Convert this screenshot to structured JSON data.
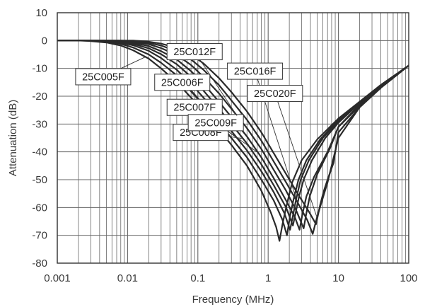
{
  "chart_data": {
    "type": "line",
    "title": "",
    "xlabel": "Frequency (MHz)",
    "ylabel": "Attenuation (dB)",
    "x_scale": "log",
    "xlim": [
      0.001,
      100
    ],
    "ylim": [
      -80,
      10
    ],
    "x_ticks": [
      "0.001",
      "0.01",
      "0.1",
      "1",
      "10",
      "100"
    ],
    "y_ticks": [
      "10",
      "0",
      "-10",
      "-20",
      "-30",
      "-40",
      "-50",
      "-60",
      "-70",
      "-80"
    ],
    "grid": true,
    "colors": {
      "series": "#2a2a2a",
      "grid": "#666666",
      "axis": "#333333"
    },
    "series": [
      {
        "name": "25C005F",
        "x": [
          0.001,
          0.002,
          0.003,
          0.005,
          0.008,
          0.012,
          0.02,
          0.03,
          0.05,
          0.08,
          0.12,
          0.2,
          0.3,
          0.5,
          0.8,
          1.1,
          1.3,
          1.45,
          1.6,
          1.8,
          2.2,
          3,
          5,
          10,
          20,
          40,
          100
        ],
        "y": [
          0,
          0,
          -0.2,
          -0.7,
          -1.8,
          -3.5,
          -6.5,
          -10,
          -15,
          -20.5,
          -25.5,
          -32,
          -37.5,
          -45,
          -54,
          -62,
          -67,
          -72,
          -66,
          -60,
          -51,
          -43,
          -35.5,
          -28,
          -22,
          -16.5,
          -9
        ]
      },
      {
        "name": "25C006F",
        "x": [
          0.001,
          0.002,
          0.003,
          0.005,
          0.008,
          0.012,
          0.02,
          0.03,
          0.05,
          0.08,
          0.12,
          0.2,
          0.3,
          0.5,
          0.8,
          1.2,
          1.6,
          1.85,
          2.05,
          2.3,
          2.7,
          3.5,
          5.5,
          10,
          20,
          40,
          100
        ],
        "y": [
          0,
          0,
          -0.1,
          -0.4,
          -1.2,
          -2.5,
          -5,
          -8,
          -12.5,
          -18,
          -23,
          -29.5,
          -35,
          -42,
          -50,
          -57.5,
          -64.5,
          -70,
          -63,
          -57,
          -50,
          -43,
          -35.5,
          -28.5,
          -22,
          -16,
          -9
        ]
      },
      {
        "name": "25C007F",
        "x": [
          0.001,
          0.002,
          0.003,
          0.005,
          0.008,
          0.012,
          0.02,
          0.03,
          0.05,
          0.08,
          0.12,
          0.2,
          0.3,
          0.5,
          0.8,
          1.2,
          1.7,
          2.05,
          2.25,
          2.5,
          2.9,
          3.8,
          6,
          10,
          20,
          40,
          100
        ],
        "y": [
          0,
          0,
          0,
          -0.2,
          -0.8,
          -1.7,
          -3.7,
          -6.3,
          -10.5,
          -15.5,
          -20.5,
          -27,
          -32.5,
          -39.5,
          -47,
          -54.5,
          -62,
          -68,
          -63,
          -57,
          -50,
          -43,
          -35,
          -29,
          -22,
          -16,
          -9
        ]
      },
      {
        "name": "25C008F",
        "x": [
          0.001,
          0.003,
          0.005,
          0.008,
          0.012,
          0.02,
          0.03,
          0.05,
          0.08,
          0.12,
          0.2,
          0.3,
          0.5,
          0.8,
          1.2,
          1.8,
          2.25,
          2.5,
          2.75,
          3.2,
          4.2,
          6.5,
          10,
          20,
          40,
          100
        ],
        "y": [
          0,
          0,
          -0.1,
          -0.5,
          -1.2,
          -2.8,
          -4.9,
          -8.5,
          -13,
          -18,
          -24.5,
          -30,
          -37,
          -44.5,
          -52,
          -60,
          -66.5,
          -61,
          -56,
          -50,
          -43,
          -35,
          -29.5,
          -22.5,
          -16,
          -9
        ]
      },
      {
        "name": "25C009F",
        "x": [
          0.001,
          0.005,
          0.008,
          0.012,
          0.02,
          0.03,
          0.05,
          0.08,
          0.12,
          0.2,
          0.3,
          0.5,
          0.8,
          1.2,
          1.8,
          2.4,
          2.8,
          3.1,
          3.5,
          4.5,
          7,
          10,
          20,
          40,
          100
        ],
        "y": [
          0,
          0,
          -0.3,
          -0.8,
          -2,
          -3.8,
          -6.8,
          -11,
          -15.5,
          -22,
          -27.5,
          -34.5,
          -42,
          -49.5,
          -57.5,
          -63.5,
          -68,
          -62,
          -56,
          -49,
          -40,
          -31,
          -23,
          -16.5,
          -9
        ]
      },
      {
        "name": "25C012F",
        "x": [
          0.001,
          0.005,
          0.008,
          0.012,
          0.02,
          0.03,
          0.05,
          0.08,
          0.12,
          0.2,
          0.3,
          0.5,
          0.8,
          1.2,
          1.8,
          2.5,
          3.2,
          3.5,
          3.9,
          5,
          7.5,
          10,
          20,
          40,
          100
        ],
        "y": [
          0,
          0,
          -0.1,
          -0.5,
          -1.3,
          -2.7,
          -5.2,
          -8.8,
          -13,
          -19,
          -24.5,
          -31.5,
          -39,
          -46.5,
          -54,
          -61,
          -67.5,
          -62,
          -56,
          -48,
          -39,
          -31,
          -23.5,
          -16.5,
          -9
        ]
      },
      {
        "name": "25C016F",
        "x": [
          0.001,
          0.008,
          0.012,
          0.02,
          0.03,
          0.05,
          0.08,
          0.12,
          0.2,
          0.3,
          0.5,
          0.8,
          1.2,
          1.8,
          2.6,
          3.6,
          4.3,
          4.9,
          5.6,
          7,
          10,
          20,
          40,
          100
        ],
        "y": [
          0,
          0,
          -0.2,
          -0.8,
          -1.8,
          -3.8,
          -6.8,
          -10.5,
          -16,
          -21.5,
          -28.5,
          -36,
          -43.5,
          -51,
          -58,
          -64.5,
          -69.5,
          -64,
          -59,
          -51,
          -35,
          -24,
          -17,
          -9
        ]
      },
      {
        "name": "25C020F",
        "x": [
          0.001,
          0.012,
          0.02,
          0.03,
          0.05,
          0.08,
          0.12,
          0.2,
          0.3,
          0.5,
          0.8,
          1.2,
          1.8,
          2.7,
          3.8,
          4.8,
          5.5,
          6.2,
          7,
          8.5,
          10,
          20,
          40,
          100
        ],
        "y": [
          0,
          0,
          -0.4,
          -1.1,
          -2.6,
          -5,
          -8.2,
          -13.5,
          -18.5,
          -25.5,
          -33,
          -40.5,
          -48,
          -55.5,
          -61.5,
          -66,
          -59,
          -54,
          -50,
          -44,
          -33,
          -24,
          -17,
          -9
        ]
      }
    ],
    "callouts": [
      {
        "label": "25C005F",
        "x": 0.0045,
        "y": -13
      },
      {
        "label": "25C006F",
        "x": 0.06,
        "y": -15
      },
      {
        "label": "25C007F",
        "x": 0.09,
        "y": -24
      },
      {
        "label": "25C008F",
        "x": 0.11,
        "y": -33
      },
      {
        "label": "25C009F",
        "x": 0.18,
        "y": -29.5
      },
      {
        "label": "25C012F",
        "x": 0.09,
        "y": -4
      },
      {
        "label": "25C016F",
        "x": 0.65,
        "y": -11
      },
      {
        "label": "25C020F",
        "x": 1.25,
        "y": -19
      }
    ]
  }
}
